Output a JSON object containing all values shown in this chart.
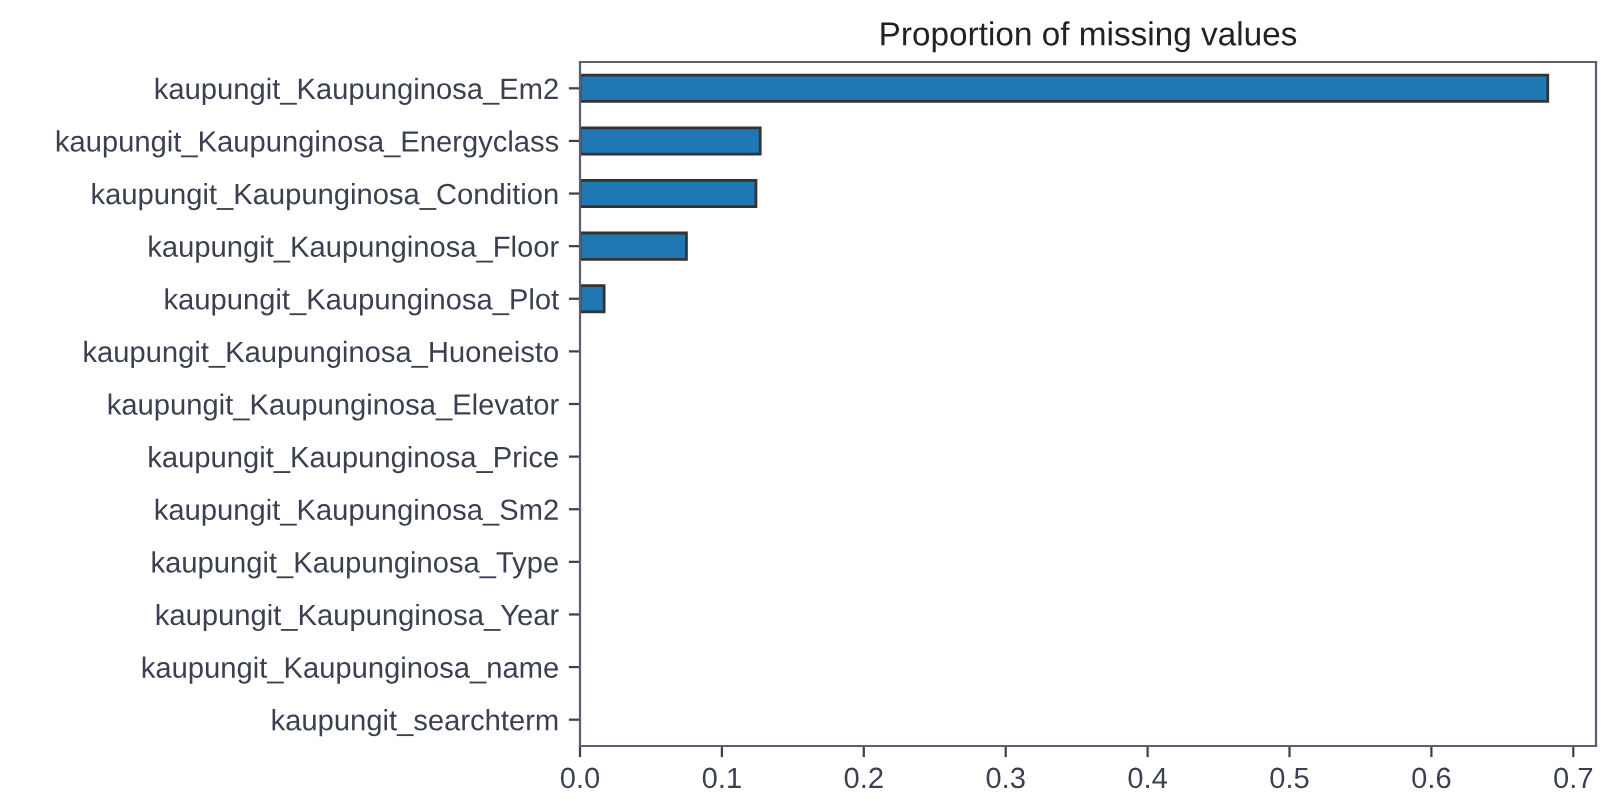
{
  "chart_data": {
    "type": "bar",
    "orientation": "horizontal",
    "title": "Proportion of missing values",
    "categories": [
      "kaupungit_Kaupunginosa_Em2",
      "kaupungit_Kaupunginosa_Energyclass",
      "kaupungit_Kaupunginosa_Condition",
      "kaupungit_Kaupunginosa_Floor",
      "kaupungit_Kaupunginosa_Plot",
      "kaupungit_Kaupunginosa_Huoneisto",
      "kaupungit_Kaupunginosa_Elevator",
      "kaupungit_Kaupunginosa_Price",
      "kaupungit_Kaupunginosa_Sm2",
      "kaupungit_Kaupunginosa_Type",
      "kaupungit_Kaupunginosa_Year",
      "kaupungit_Kaupunginosa_name",
      "kaupungit_searchterm"
    ],
    "values": [
      0.682,
      0.127,
      0.124,
      0.075,
      0.017,
      0,
      0,
      0,
      0,
      0,
      0,
      0,
      0
    ],
    "color": "#1f77b4",
    "xlim": [
      0,
      0.716
    ],
    "xticks": [
      {
        "value": 0,
        "label": "0.0"
      },
      0.1,
      0.2,
      0.3,
      0.4,
      0.5,
      0.6,
      0.7
    ],
    "grid": false
  }
}
